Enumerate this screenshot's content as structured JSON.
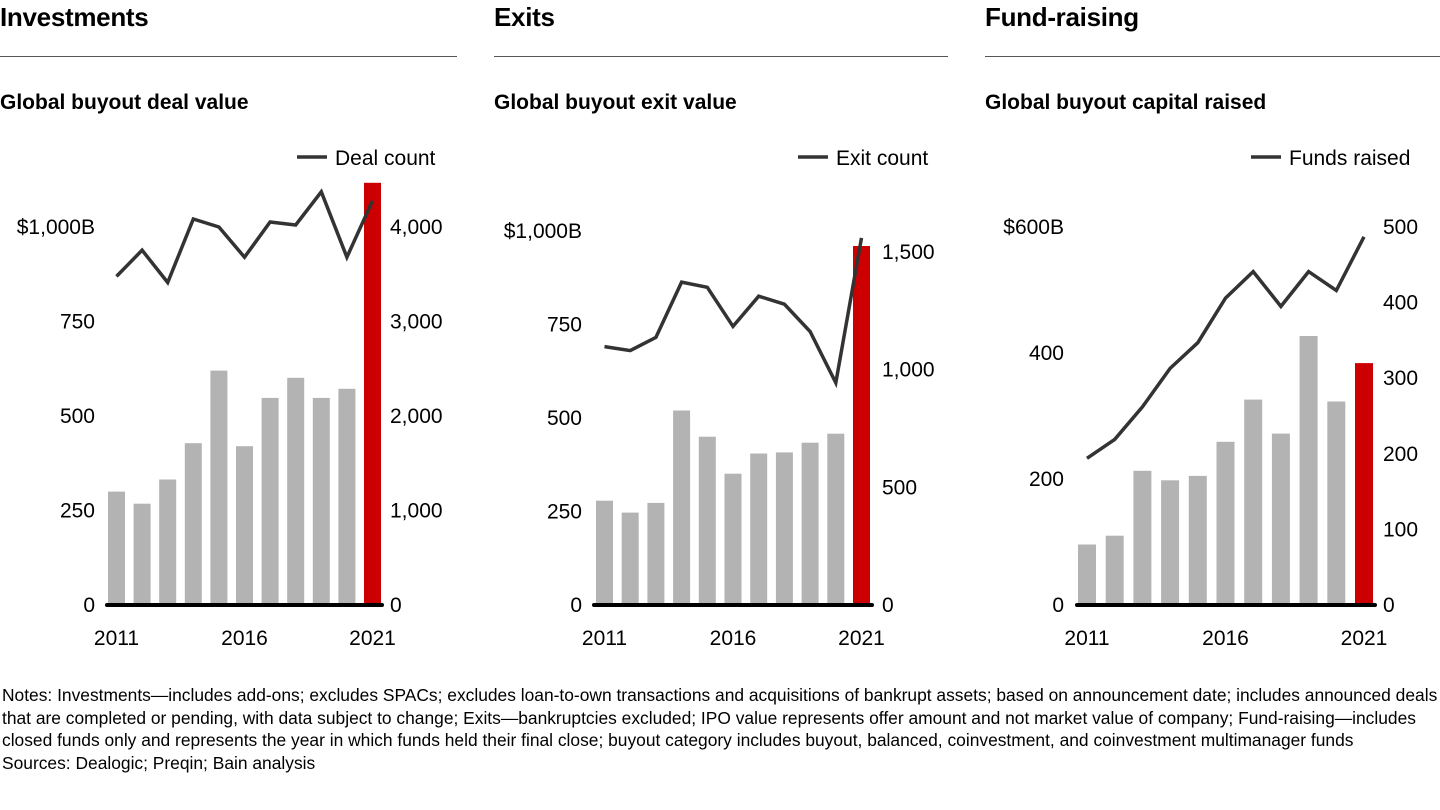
{
  "panels": [
    {
      "heading": "Investments",
      "subtitle": "Global buyout deal value"
    },
    {
      "heading": "Exits",
      "subtitle": "Global buyout exit value"
    },
    {
      "heading": "Fund-raising",
      "subtitle": "Global buyout capital raised"
    }
  ],
  "notes": "Notes: Investments—includes add-ons; excludes SPACs; excludes loan-to-own transactions and acquisitions of bankrupt assets; based on announcement date; includes announced deals that are completed or pending, with data subject to change; Exits—bankruptcies excluded; IPO value represents offer amount and not market value of company; Fund-raising—includes closed funds only and represents the year in which funds held their final close; buyout category includes buyout, balanced, coinvestment, and coinvestment multimanager funds",
  "sources": "Sources: Dealogic; Preqin; Bain analysis",
  "colors": {
    "bar": "#b3b3b3",
    "highlight": "#cc0000",
    "line": "#333333",
    "axis": "#000000"
  },
  "chart_data": [
    {
      "type": "bar+line",
      "title": "Global buyout deal value",
      "categories": [
        "2011",
        "2012",
        "2013",
        "2014",
        "2015",
        "2016",
        "2017",
        "2018",
        "2019",
        "2020",
        "2021"
      ],
      "x_tick_labels": [
        "2011",
        "2016",
        "2021"
      ],
      "series": [
        {
          "name": "Deal value ($B)",
          "type": "bar",
          "axis": "left",
          "highlight_last": true,
          "values": [
            300,
            268,
            332,
            428,
            620,
            420,
            548,
            601,
            548,
            572,
            1117
          ]
        },
        {
          "name": "Deal count",
          "type": "line",
          "axis": "right",
          "values": [
            3477,
            3755,
            3413,
            4085,
            4000,
            3680,
            4053,
            4021,
            4373,
            3680,
            4277
          ]
        }
      ],
      "left_axis": {
        "ylim": [
          0,
          1000
        ],
        "ticks": [
          0,
          250,
          500,
          750,
          1000
        ],
        "tick_labels": [
          "0",
          "250",
          "500",
          "750",
          "$1,000B"
        ]
      },
      "right_axis": {
        "ylim": [
          0,
          4000
        ],
        "ticks": [
          0,
          1000,
          2000,
          3000,
          4000
        ],
        "tick_labels": [
          "0",
          "1,000",
          "2,000",
          "3,000",
          "4,000"
        ]
      },
      "legend": {
        "label": "Deal count",
        "placement": "top-right"
      },
      "grid": false
    },
    {
      "type": "bar+line",
      "title": "Global buyout exit value",
      "categories": [
        "2011",
        "2012",
        "2013",
        "2014",
        "2015",
        "2016",
        "2017",
        "2018",
        "2019",
        "2020",
        "2021"
      ],
      "x_tick_labels": [
        "2011",
        "2016",
        "2021"
      ],
      "series": [
        {
          "name": "Exit value ($B)",
          "type": "bar",
          "axis": "left",
          "highlight_last": true,
          "values": [
            279,
            247,
            273,
            520,
            450,
            351,
            405,
            408,
            434,
            458,
            960
          ]
        },
        {
          "name": "Exit count",
          "type": "line",
          "axis": "right",
          "values": [
            1098,
            1081,
            1137,
            1372,
            1350,
            1184,
            1312,
            1278,
            1162,
            944,
            1560
          ]
        }
      ],
      "left_axis": {
        "ylim": [
          0,
          1000
        ],
        "ticks": [
          0,
          250,
          500,
          750,
          1000
        ],
        "tick_labels": [
          "0",
          "250",
          "500",
          "750",
          "$1,000B"
        ]
      },
      "right_axis": {
        "ylim": [
          0,
          1500
        ],
        "ticks": [
          0,
          500,
          1000,
          1500
        ],
        "tick_labels": [
          "0",
          "500",
          "1,000",
          "1,500"
        ]
      },
      "legend": {
        "label": "Exit count",
        "placement": "top-right"
      },
      "grid": false
    },
    {
      "type": "bar+line",
      "title": "Global buyout capital raised",
      "categories": [
        "2011",
        "2012",
        "2013",
        "2014",
        "2015",
        "2016",
        "2017",
        "2018",
        "2019",
        "2020",
        "2021"
      ],
      "x_tick_labels": [
        "2011",
        "2016",
        "2021"
      ],
      "series": [
        {
          "name": "Capital raised ($B)",
          "type": "bar",
          "axis": "left",
          "highlight_last": true,
          "values": [
            96,
            110,
            213,
            198,
            205,
            259,
            326,
            272,
            427,
            323,
            384
          ]
        },
        {
          "name": "Funds raised",
          "type": "line",
          "axis": "right",
          "values": [
            194,
            219,
            262,
            313,
            347,
            406,
            441,
            395,
            441,
            416,
            487
          ]
        }
      ],
      "left_axis": {
        "ylim": [
          0,
          600
        ],
        "ticks": [
          0,
          200,
          400,
          600
        ],
        "tick_labels": [
          "0",
          "200",
          "400",
          "$600B"
        ]
      },
      "right_axis": {
        "ylim": [
          0,
          500
        ],
        "ticks": [
          0,
          100,
          200,
          300,
          400,
          500
        ],
        "tick_labels": [
          "0",
          "100",
          "200",
          "300",
          "400",
          "500"
        ]
      },
      "legend": {
        "label": "Funds raised",
        "placement": "top-right"
      },
      "grid": false
    }
  ]
}
